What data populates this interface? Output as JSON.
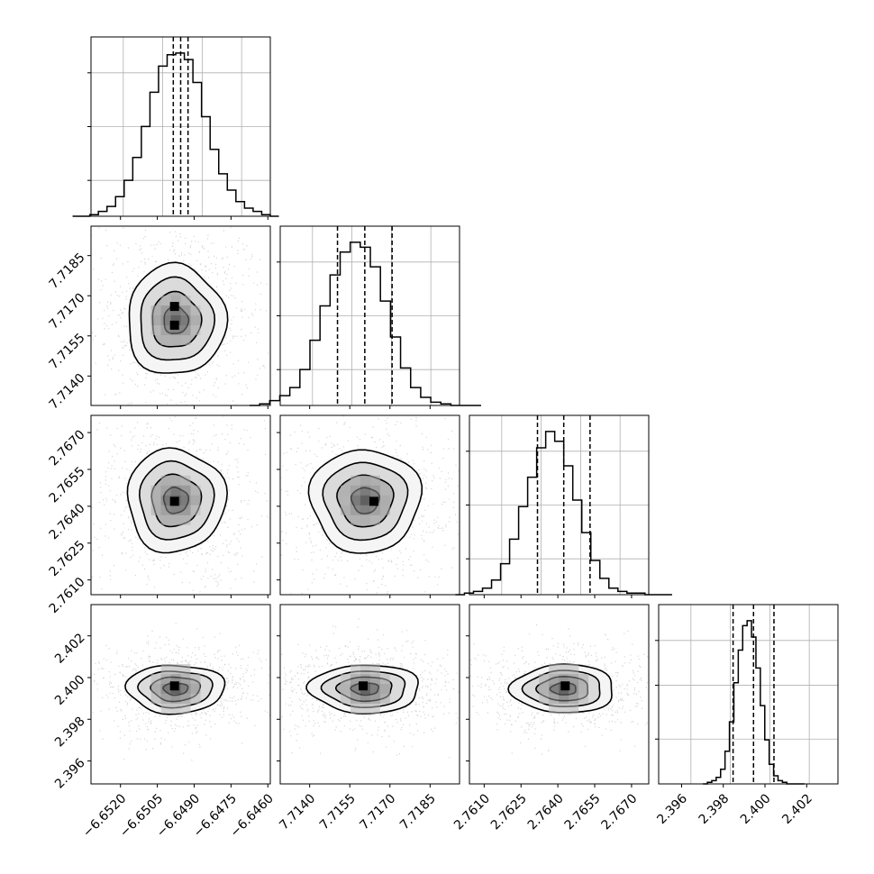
{
  "chart_data": {
    "type": "corner",
    "parameters": [
      {
        "id": "p0",
        "mean": -6.64975,
        "sd": 0.001,
        "range": [
          -6.6532,
          -6.6459
        ],
        "ticks": [
          -6.652,
          -6.6505,
          -6.649,
          -6.6475,
          -6.646
        ],
        "tick_labels": [
          "−6.6520",
          "−6.6505",
          "−6.6490",
          "−6.6475",
          "−6.6460"
        ],
        "quantiles": [
          -6.64985,
          -6.64955,
          -6.64925
        ],
        "hist_grid_y": [
          0.2,
          0.5,
          0.8
        ]
      },
      {
        "id": "p1",
        "mean": 7.71608,
        "sd": 0.00103,
        "range": [
          7.7129,
          7.7196
        ],
        "ticks": [
          7.714,
          7.7155,
          7.717,
          7.7185
        ],
        "tick_labels": [
          "7.7140",
          "7.7155",
          "7.7170",
          "7.7185"
        ],
        "quantiles": [
          7.71504,
          7.71606,
          7.71708
        ],
        "hist_grid_y": [
          0.2,
          0.5,
          0.8
        ]
      },
      {
        "id": "p2",
        "mean": 2.76424,
        "sd": 0.00105,
        "range": [
          2.7604,
          2.7677
        ],
        "ticks": [
          2.761,
          2.7625,
          2.764,
          2.7655,
          2.767
        ],
        "tick_labels": [
          "2.7610",
          "2.7625",
          "2.7640",
          "2.7655",
          "2.7670"
        ],
        "quantiles": [
          2.76317,
          2.76424,
          2.76531
        ],
        "hist_grid_y": [
          0.2,
          0.5,
          0.8
        ]
      },
      {
        "id": "p3",
        "mean": 2.39946,
        "sd": 0.00058,
        "range": [
          2.3949,
          2.4035
        ],
        "ticks": [
          2.396,
          2.398,
          2.4,
          2.402
        ],
        "tick_labels": [
          "2.396",
          "2.398",
          "2.400",
          "2.402"
        ],
        "quantiles": [
          2.39847,
          2.39945,
          2.40043
        ],
        "hist_grid_y": [
          0.25,
          0.55,
          0.8
        ]
      }
    ],
    "histograms": [
      [
        0,
        0,
        1,
        3,
        6,
        12,
        22,
        36,
        55,
        76,
        92,
        99,
        100,
        96,
        82,
        61,
        41,
        26,
        16,
        9,
        5,
        3,
        1,
        0
      ],
      [
        0,
        1,
        3,
        6,
        11,
        22,
        40,
        61,
        80,
        94,
        100,
        97,
        85,
        64,
        42,
        23,
        11,
        5,
        2,
        1,
        0,
        0,
        0
      ],
      [
        0,
        1,
        2,
        4,
        9,
        19,
        34,
        54,
        72,
        90,
        100,
        94,
        79,
        58,
        38,
        21,
        10,
        4,
        2,
        1,
        1,
        0,
        0,
        0
      ],
      [
        0,
        1,
        2,
        4,
        9,
        20,
        38,
        62,
        82,
        97,
        100,
        90,
        71,
        48,
        27,
        12,
        5,
        2,
        1,
        0,
        0,
        0,
        0
      ]
    ],
    "contour_levels_sigma": [
      0.5,
      1,
      1.5,
      2
    ],
    "dark_cores": [
      {
        "row": 1,
        "col": 0,
        "cells": [
          [
            -6.6498,
            7.7166
          ],
          [
            -6.6498,
            7.7159
          ]
        ]
      },
      {
        "row": 2,
        "col": 0,
        "cells": [
          [
            -6.6498,
            2.7642
          ]
        ]
      },
      {
        "row": 2,
        "col": 1,
        "cells": [
          [
            7.7164,
            2.7642
          ]
        ]
      },
      {
        "row": 3,
        "col": 0,
        "cells": [
          [
            -6.6498,
            2.3996
          ]
        ]
      },
      {
        "row": 3,
        "col": 1,
        "cells": [
          [
            7.716,
            2.3996
          ]
        ]
      },
      {
        "row": 3,
        "col": 2,
        "cells": [
          [
            2.7643,
            2.3996
          ]
        ]
      }
    ]
  }
}
